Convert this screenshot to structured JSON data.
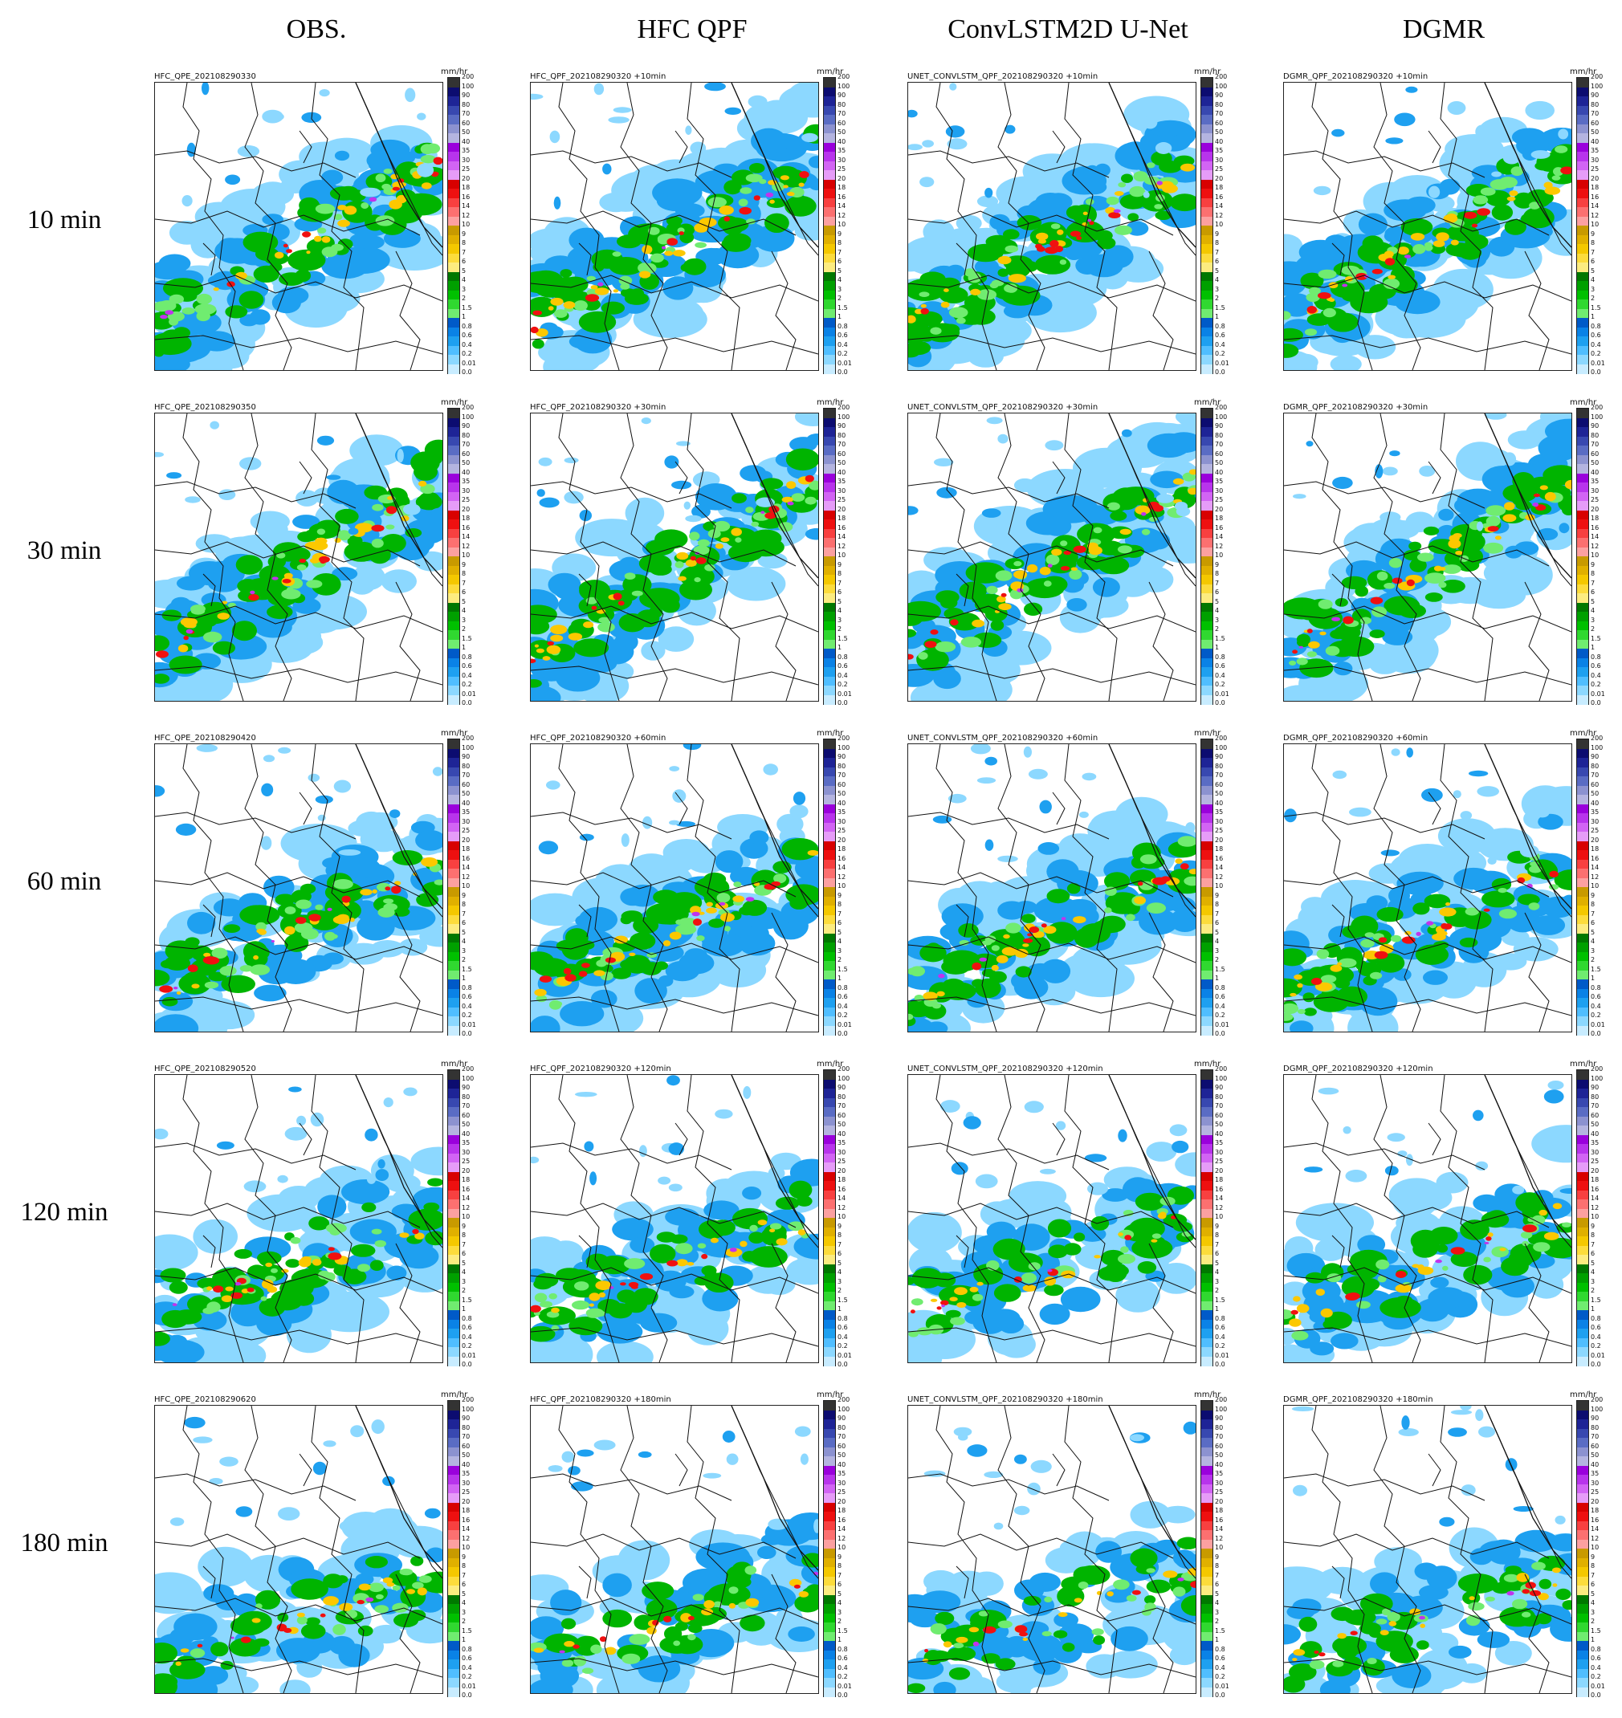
{
  "columns": [
    {
      "id": "obs",
      "title": "OBS."
    },
    {
      "id": "hfc",
      "title": "HFC QPF"
    },
    {
      "id": "unet",
      "title": "ConvLSTM2D U-Net"
    },
    {
      "id": "dgmr",
      "title": "DGMR"
    }
  ],
  "rows": [
    {
      "id": "r10",
      "title": "10 min"
    },
    {
      "id": "r30",
      "title": "30 min"
    },
    {
      "id": "r60",
      "title": "60 min"
    },
    {
      "id": "r120",
      "title": "120 min"
    },
    {
      "id": "r180",
      "title": "180 min"
    }
  ],
  "panel_labels": [
    [
      "HFC_QPE_202108290330",
      "HFC_QPF_202108290320 +10min",
      "UNET_CONVLSTM_QPF_202108290320 +10min",
      "DGMR_QPF_202108290320 +10min"
    ],
    [
      "HFC_QPE_202108290350",
      "HFC_QPF_202108290320 +30min",
      "UNET_CONVLSTM_QPF_202108290320 +30min",
      "DGMR_QPF_202108290320 +30min"
    ],
    [
      "HFC_QPE_202108290420",
      "HFC_QPF_202108290320 +60min",
      "UNET_CONVLSTM_QPF_202108290320 +60min",
      "DGMR_QPF_202108290320 +60min"
    ],
    [
      "HFC_QPE_202108290520",
      "HFC_QPF_202108290320 +120min",
      "UNET_CONVLSTM_QPF_202108290320 +120min",
      "DGMR_QPF_202108290320 +120min"
    ],
    [
      "HFC_QPE_202108290620",
      "HFC_QPF_202108290320 +180min",
      "UNET_CONVLSTM_QPF_202108290320 +180min",
      "DGMR_QPF_202108290320 +180min"
    ]
  ],
  "colorbar": {
    "unit": "mm/hr",
    "ticks": [
      "200",
      "100",
      "90",
      "80",
      "70",
      "60",
      "50",
      "40",
      "35",
      "30",
      "25",
      "20",
      "18",
      "16",
      "14",
      "12",
      "10",
      "9",
      "8",
      "7",
      "6",
      "5",
      "4",
      "3",
      "2",
      "1.5",
      "1",
      "0.8",
      "0.6",
      "0.4",
      "0.2",
      "0.01",
      "0.0"
    ],
    "colors": [
      "#333333",
      "#0c0c70",
      "#1e2496",
      "#3848b0",
      "#5a6cc4",
      "#8c92d0",
      "#b4b4e0",
      "#9a00dc",
      "#b834ec",
      "#d264f4",
      "#e69cf8",
      "#d80000",
      "#ee1010",
      "#f84040",
      "#fc7070",
      "#fca0a0",
      "#c89a00",
      "#e0b000",
      "#f4c800",
      "#fcdc3c",
      "#fcec80",
      "#007800",
      "#00a000",
      "#00c000",
      "#30d830",
      "#70ec70",
      "#005ac8",
      "#0a82e6",
      "#1ea0f0",
      "#50beff",
      "#8cd8ff",
      "#c8ecff"
    ]
  },
  "rain_colors": {
    "light": "#8cd8ff",
    "medium": "#1ea0f0",
    "heavy": "#00b400",
    "strong": "#70ec70",
    "intense": "#fcc800",
    "extreme": "#f01010",
    "peak": "#c034ec"
  }
}
